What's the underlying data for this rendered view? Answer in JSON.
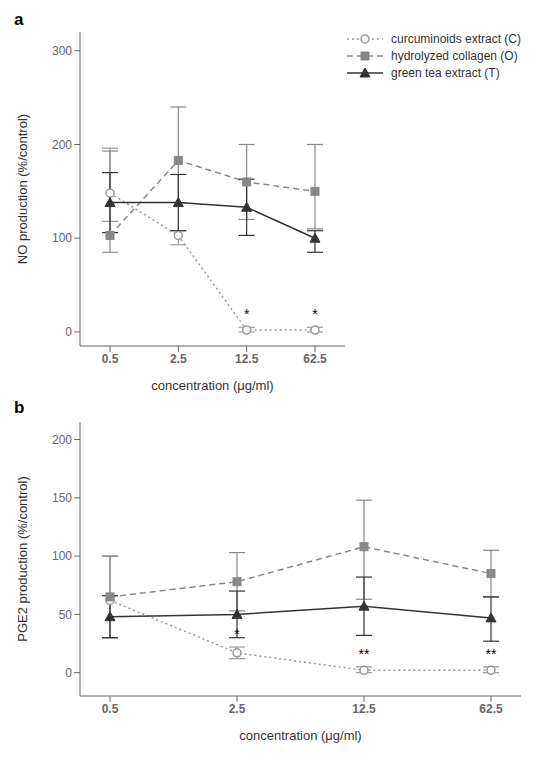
{
  "chart_data": [
    {
      "type": "line",
      "title": "a",
      "y_label": "NO production (%/control)",
      "x_label": "concentration (μg/ml)",
      "categories": [
        "0.5",
        "2.5",
        "12.5",
        "62.5"
      ],
      "ylim": [
        -15,
        320
      ],
      "yticks": [
        0,
        100,
        200,
        300
      ],
      "legend": "upper right",
      "series": [
        {
          "name": "curcuminoids extract (C)",
          "color": "#999999",
          "line_style": "dotted",
          "marker": "circle",
          "values": [
            148,
            103,
            2,
            2
          ],
          "err_lo": [
            30,
            10,
            2,
            2
          ],
          "err_hi": [
            48,
            5,
            3,
            3
          ]
        },
        {
          "name": "hydrolyzed collagen (O)",
          "color": "#888888",
          "line_style": "dashed",
          "marker": "square",
          "values": [
            103,
            183,
            160,
            150
          ],
          "err_lo": [
            18,
            45,
            40,
            40
          ],
          "err_hi": [
            90,
            57,
            40,
            50
          ]
        },
        {
          "name": "green tea extract (T)",
          "color": "#333333",
          "line_style": "solid",
          "marker": "triangle",
          "values": [
            138,
            138,
            133,
            100
          ],
          "err_lo": [
            32,
            30,
            30,
            15
          ],
          "err_hi": [
            32,
            30,
            30,
            8
          ]
        }
      ],
      "annotations": [
        {
          "series": "curcuminoids extract (C)",
          "category": "12.5",
          "text": "*"
        },
        {
          "series": "curcuminoids extract (C)",
          "category": "62.5",
          "text": "*"
        }
      ]
    },
    {
      "type": "line",
      "title": "b",
      "y_label": "PGE2 production (%/control)",
      "x_label": "concentration (μg/ml)",
      "categories": [
        "0.5",
        "2.5",
        "12.5",
        "62.5"
      ],
      "ylim": [
        -20,
        215
      ],
      "yticks": [
        0,
        50,
        100,
        150,
        200
      ],
      "series": [
        {
          "name": "curcuminoids extract (C)",
          "color": "#999999",
          "line_style": "dotted",
          "marker": "circle",
          "values": [
            62,
            17,
            2,
            2
          ],
          "err_lo": [
            32,
            5,
            2,
            2
          ],
          "err_hi": [
            38,
            5,
            3,
            3
          ]
        },
        {
          "name": "hydrolyzed collagen (O)",
          "color": "#888888",
          "line_style": "dashed",
          "marker": "square",
          "values": [
            65,
            78,
            108,
            85
          ],
          "err_lo": [
            35,
            25,
            45,
            20
          ],
          "err_hi": [
            35,
            25,
            40,
            20
          ]
        },
        {
          "name": "green tea extract (T)",
          "color": "#333333",
          "line_style": "solid",
          "marker": "triangle",
          "values": [
            48,
            50,
            57,
            47
          ],
          "err_lo": [
            18,
            20,
            25,
            20
          ],
          "err_hi": [
            18,
            20,
            25,
            18
          ]
        }
      ],
      "annotations": [
        {
          "series": "curcuminoids extract (C)",
          "category": "2.5",
          "text": "*"
        },
        {
          "series": "curcuminoids extract (C)",
          "category": "12.5",
          "text": "**"
        },
        {
          "series": "curcuminoids extract (C)",
          "category": "62.5",
          "text": "**"
        }
      ]
    }
  ]
}
